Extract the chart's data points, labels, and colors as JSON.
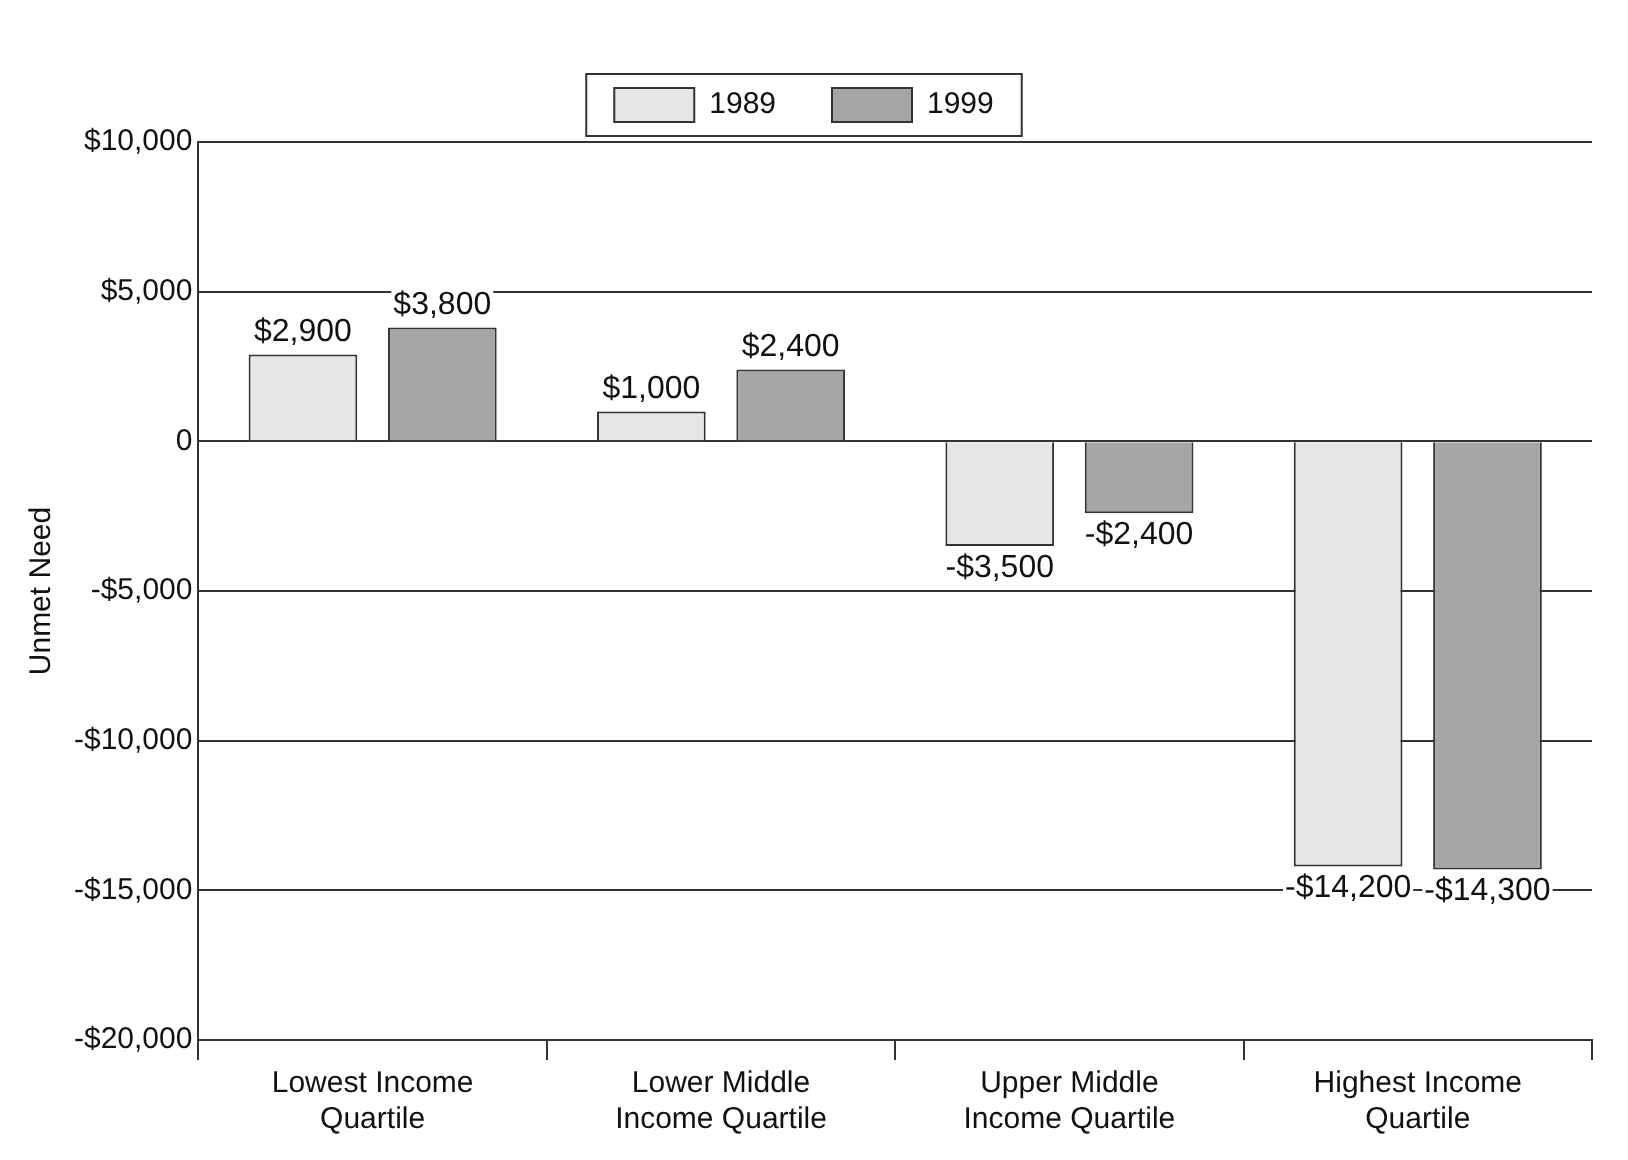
{
  "chart_data": {
    "type": "bar",
    "ylabel": "Unmet Need",
    "categories": [
      "Lowest Income Quartile",
      "Lower Middle Income Quartile",
      "Upper Middle Income Quartile",
      "Highest Income Quartile"
    ],
    "series": [
      {
        "name": "1989",
        "color": "#e6e6e6",
        "values": [
          2900,
          1000,
          -3500,
          -14200
        ],
        "value_labels": [
          "$2,900",
          "$1,000",
          "-$3,500",
          "-$14,200"
        ]
      },
      {
        "name": "1999",
        "color": "#a6a6a6",
        "values": [
          3800,
          2400,
          -2400,
          -14300
        ],
        "value_labels": [
          "$3,800",
          "$2,400",
          "-$2,400",
          "-$14,300"
        ]
      }
    ],
    "ylim": [
      -20000,
      10000
    ],
    "yticks": [
      {
        "value": -20000,
        "label": "-$20,000"
      },
      {
        "value": -15000,
        "label": "-$15,000"
      },
      {
        "value": -10000,
        "label": "-$10,000"
      },
      {
        "value": -5000,
        "label": "-$5,000"
      },
      0,
      {
        "value": 5000,
        "label": "$5,000"
      },
      {
        "value": 10000,
        "label": "$10,000"
      }
    ],
    "grid": "y",
    "legend": "top"
  }
}
